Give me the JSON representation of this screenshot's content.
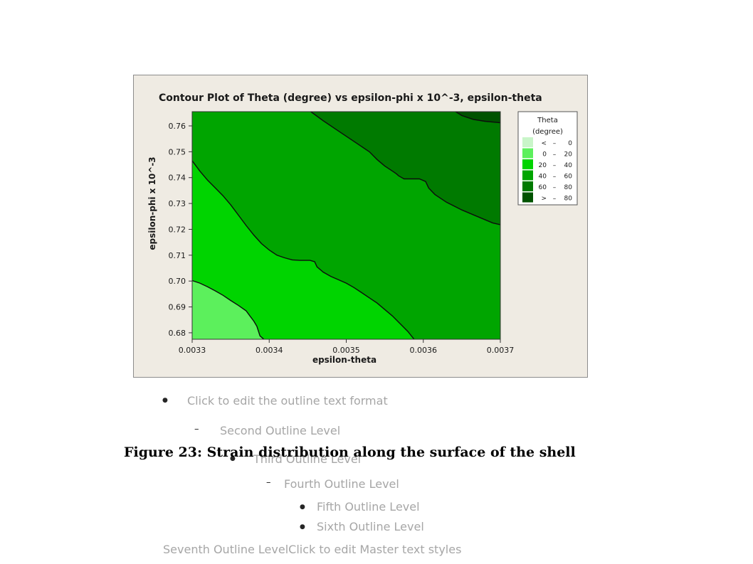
{
  "slide": {
    "caption": "Figure 23: Strain distribution along the surface of the shell",
    "placeholder": {
      "level1": "Click to edit the outline text format",
      "level2": "Second Outline Level",
      "level3": "Third Outline Level",
      "level4": "Fourth Outline Level",
      "level5": "Fifth Outline Level",
      "level6": "Sixth Outline Level",
      "level7": "Seventh Outline LevelClick to edit Master text styles"
    }
  },
  "chart_data": {
    "type": "contour",
    "title": "Contour Plot of Theta (degree) vs epsilon-phi x 10^-3, epsilon-theta",
    "xlabel": "epsilon-theta",
    "ylabel": "epsilon-phi x 10^-3",
    "xlim": [
      0.0033,
      0.0037
    ],
    "ylim": [
      0.6775,
      0.7655
    ],
    "x_ticks": [
      "0.0033",
      "0.0034",
      "0.0035",
      "0.0036",
      "0.0037"
    ],
    "x_tick_values": [
      0.0033,
      0.0034,
      0.0035,
      0.0036,
      0.0037
    ],
    "y_ticks": [
      "0.68",
      "0.69",
      "0.70",
      "0.71",
      "0.72",
      "0.73",
      "0.74",
      "0.75",
      "0.76"
    ],
    "y_tick_values": [
      0.68,
      0.69,
      0.7,
      0.71,
      0.72,
      0.73,
      0.74,
      0.75,
      0.76
    ],
    "legend": {
      "title_lines": [
        "Theta",
        "(degree)"
      ],
      "placement": "right",
      "entries": [
        {
          "lo": "<",
          "hi": "0",
          "color": "#c9f5c9"
        },
        {
          "lo": "0",
          "hi": "20",
          "color": "#5cf05c"
        },
        {
          "lo": "20",
          "hi": "40",
          "color": "#00d400"
        },
        {
          "lo": "40",
          "hi": "60",
          "color": "#00a500"
        },
        {
          "lo": "60",
          "hi": "80",
          "color": "#007a00"
        },
        {
          "lo": ">",
          "hi": "80",
          "color": "#005200"
        }
      ]
    },
    "contour_lines": [
      {
        "level": 20,
        "points": [
          [
            0.0033,
            0.7002
          ],
          [
            0.00331,
            0.6992
          ],
          [
            0.00332,
            0.6978
          ],
          [
            0.00333,
            0.6962
          ],
          [
            0.00334,
            0.6945
          ],
          [
            0.00335,
            0.6925
          ],
          [
            0.00336,
            0.6906
          ],
          [
            0.00337,
            0.6885
          ],
          [
            0.003375,
            0.6865
          ],
          [
            0.00338,
            0.6845
          ],
          [
            0.003384,
            0.6825
          ],
          [
            0.003388,
            0.6788
          ],
          [
            0.003393,
            0.6775
          ]
        ]
      },
      {
        "level": 40,
        "points": [
          [
            0.0033,
            0.7465
          ],
          [
            0.00331,
            0.7425
          ],
          [
            0.00332,
            0.739
          ],
          [
            0.00333,
            0.736
          ],
          [
            0.00334,
            0.733
          ],
          [
            0.00335,
            0.7295
          ],
          [
            0.00336,
            0.7255
          ],
          [
            0.00337,
            0.7215
          ],
          [
            0.00338,
            0.7178
          ],
          [
            0.00339,
            0.7145
          ],
          [
            0.0034,
            0.712
          ],
          [
            0.00341,
            0.71
          ],
          [
            0.00342,
            0.709
          ],
          [
            0.00343,
            0.7082
          ],
          [
            0.00344,
            0.708
          ],
          [
            0.003453,
            0.708
          ],
          [
            0.003459,
            0.7075
          ],
          [
            0.003462,
            0.7055
          ],
          [
            0.00347,
            0.7035
          ],
          [
            0.00348,
            0.7018
          ],
          [
            0.00349,
            0.7005
          ],
          [
            0.0035,
            0.6992
          ],
          [
            0.00351,
            0.6975
          ],
          [
            0.00352,
            0.6955
          ],
          [
            0.00353,
            0.6935
          ],
          [
            0.00354,
            0.6915
          ],
          [
            0.00355,
            0.689
          ],
          [
            0.00356,
            0.6865
          ],
          [
            0.00357,
            0.6835
          ],
          [
            0.00358,
            0.6805
          ],
          [
            0.003588,
            0.6775
          ]
        ]
      },
      {
        "level": 60,
        "points": [
          [
            0.003454,
            0.7655
          ],
          [
            0.00347,
            0.762
          ],
          [
            0.00349,
            0.758
          ],
          [
            0.00351,
            0.754
          ],
          [
            0.00353,
            0.75
          ],
          [
            0.00354,
            0.747
          ],
          [
            0.00355,
            0.7445
          ],
          [
            0.00356,
            0.7425
          ],
          [
            0.003565,
            0.7415
          ],
          [
            0.003568,
            0.7407
          ],
          [
            0.003575,
            0.7395
          ],
          [
            0.003585,
            0.7395
          ],
          [
            0.003595,
            0.7395
          ],
          [
            0.003603,
            0.7385
          ],
          [
            0.003607,
            0.736
          ],
          [
            0.003615,
            0.7335
          ],
          [
            0.00363,
            0.7305
          ],
          [
            0.00365,
            0.7275
          ],
          [
            0.00367,
            0.725
          ],
          [
            0.00369,
            0.7225
          ],
          [
            0.0037,
            0.7218
          ]
        ]
      },
      {
        "level": 80,
        "points": [
          [
            0.003642,
            0.7655
          ],
          [
            0.00365,
            0.764
          ],
          [
            0.003665,
            0.7625
          ],
          [
            0.00368,
            0.7618
          ],
          [
            0.0037,
            0.7612
          ]
        ]
      }
    ],
    "fill_regions": [
      {
        "band": "> 80",
        "color": "#005200",
        "points": [
          [
            0.003642,
            0.7655
          ],
          [
            0.00365,
            0.764
          ],
          [
            0.003665,
            0.7625
          ],
          [
            0.00368,
            0.7618
          ],
          [
            0.0037,
            0.7612
          ],
          [
            0.0037,
            0.7655
          ]
        ]
      },
      {
        "band": "60 - 80",
        "color": "#007a00",
        "points": [
          [
            0.003454,
            0.7655
          ],
          [
            0.00347,
            0.762
          ],
          [
            0.00349,
            0.758
          ],
          [
            0.00351,
            0.754
          ],
          [
            0.00353,
            0.75
          ],
          [
            0.00354,
            0.747
          ],
          [
            0.00355,
            0.7445
          ],
          [
            0.00356,
            0.7425
          ],
          [
            0.003565,
            0.7415
          ],
          [
            0.003568,
            0.7407
          ],
          [
            0.003575,
            0.7395
          ],
          [
            0.003585,
            0.7395
          ],
          [
            0.003595,
            0.7395
          ],
          [
            0.003603,
            0.7385
          ],
          [
            0.003607,
            0.736
          ],
          [
            0.003615,
            0.7335
          ],
          [
            0.00363,
            0.7305
          ],
          [
            0.00365,
            0.7275
          ],
          [
            0.00367,
            0.725
          ],
          [
            0.00369,
            0.7225
          ],
          [
            0.0037,
            0.7218
          ],
          [
            0.0037,
            0.7612
          ],
          [
            0.00368,
            0.7618
          ],
          [
            0.003665,
            0.7625
          ],
          [
            0.00365,
            0.764
          ],
          [
            0.003642,
            0.7655
          ]
        ]
      },
      {
        "band": "20 - 40",
        "color": "#00d400",
        "points": [
          [
            0.0033,
            0.7465
          ],
          [
            0.00331,
            0.7425
          ],
          [
            0.00332,
            0.739
          ],
          [
            0.00333,
            0.736
          ],
          [
            0.00334,
            0.733
          ],
          [
            0.00335,
            0.7295
          ],
          [
            0.00336,
            0.7255
          ],
          [
            0.00337,
            0.7215
          ],
          [
            0.00338,
            0.7178
          ],
          [
            0.00339,
            0.7145
          ],
          [
            0.0034,
            0.712
          ],
          [
            0.00341,
            0.71
          ],
          [
            0.00342,
            0.709
          ],
          [
            0.00343,
            0.7082
          ],
          [
            0.00344,
            0.708
          ],
          [
            0.003453,
            0.708
          ],
          [
            0.003459,
            0.7075
          ],
          [
            0.003462,
            0.7055
          ],
          [
            0.00347,
            0.7035
          ],
          [
            0.00348,
            0.7018
          ],
          [
            0.00349,
            0.7005
          ],
          [
            0.0035,
            0.6992
          ],
          [
            0.00351,
            0.6975
          ],
          [
            0.00352,
            0.6955
          ],
          [
            0.00353,
            0.6935
          ],
          [
            0.00354,
            0.6915
          ],
          [
            0.00355,
            0.689
          ],
          [
            0.00356,
            0.6865
          ],
          [
            0.00357,
            0.6835
          ],
          [
            0.00358,
            0.6805
          ],
          [
            0.003588,
            0.6775
          ],
          [
            0.0033,
            0.6775
          ]
        ]
      },
      {
        "band": "0 - 20",
        "color": "#5cf05c",
        "points": [
          [
            0.0033,
            0.7002
          ],
          [
            0.00331,
            0.6992
          ],
          [
            0.00332,
            0.6978
          ],
          [
            0.00333,
            0.6962
          ],
          [
            0.00334,
            0.6945
          ],
          [
            0.00335,
            0.6925
          ],
          [
            0.00336,
            0.6906
          ],
          [
            0.00337,
            0.6885
          ],
          [
            0.003375,
            0.6865
          ],
          [
            0.00338,
            0.6845
          ],
          [
            0.003384,
            0.6825
          ],
          [
            0.003388,
            0.6788
          ],
          [
            0.003393,
            0.6775
          ],
          [
            0.0033,
            0.6775
          ]
        ]
      }
    ],
    "base_band_color": "#00a500"
  }
}
